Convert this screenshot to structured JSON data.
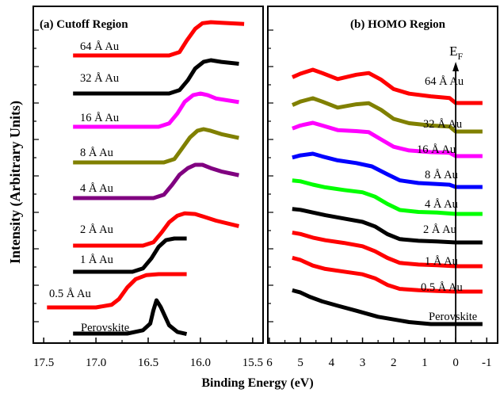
{
  "figure": {
    "ylabel": "Intensity (Arbitrary Units)",
    "xlabel": "Binding Energy (eV)",
    "ef_label": "E",
    "ef_subscript": "F"
  },
  "chart_data": [
    {
      "type": "line",
      "title": "(a) Cutoff Region",
      "xlabel": "Binding Energy (eV)",
      "ylabel": "Intensity (Arbitrary Units)",
      "xlim": [
        17.6,
        15.4
      ],
      "x_reversed": true,
      "x_ticks": [
        "17.5",
        "17.0",
        "16.5",
        "16.0",
        "15.5"
      ],
      "grid": false,
      "legend": "none (inline curve labels)",
      "series": [
        {
          "name": "Perovskite",
          "color": "#000000",
          "x": [
            17.2,
            16.7,
            16.55,
            16.48,
            16.45,
            16.42,
            16.38,
            16.3,
            16.22,
            16.15
          ],
          "y": [
            0.0,
            0.0,
            0.1,
            0.3,
            0.7,
            1.0,
            0.8,
            0.25,
            0.05,
            0.0
          ]
        },
        {
          "name": "0.5 Å Au",
          "color": "#ff0000",
          "x": [
            17.45,
            17.0,
            16.85,
            16.78,
            16.7,
            16.62,
            16.52,
            16.4,
            16.15
          ],
          "y": [
            0.0,
            0.0,
            0.08,
            0.25,
            0.6,
            0.85,
            0.97,
            1.0,
            1.0
          ]
        },
        {
          "name": "1 Å Au",
          "color": "#000000",
          "x": [
            17.2,
            16.65,
            16.55,
            16.47,
            16.4,
            16.33,
            16.25,
            16.15
          ],
          "y": [
            0.0,
            0.0,
            0.1,
            0.4,
            0.75,
            0.95,
            1.0,
            1.0
          ]
        },
        {
          "name": "2 Å Au",
          "color": "#ff0000",
          "x": [
            17.2,
            16.55,
            16.45,
            16.37,
            16.3,
            16.22,
            16.15,
            16.05,
            15.95,
            15.85,
            15.65
          ],
          "y": [
            0.0,
            0.0,
            0.1,
            0.4,
            0.7,
            0.9,
            0.97,
            0.95,
            0.85,
            0.75,
            0.6
          ]
        },
        {
          "name": "4 Å Au",
          "color": "#800080",
          "x": [
            17.2,
            16.45,
            16.35,
            16.27,
            16.2,
            16.12,
            16.05,
            15.98,
            15.9,
            15.8,
            15.65
          ],
          "y": [
            0.0,
            0.0,
            0.1,
            0.4,
            0.7,
            0.9,
            1.0,
            1.0,
            0.9,
            0.8,
            0.7
          ]
        },
        {
          "name": "8 Å Au",
          "color": "#808000",
          "x": [
            17.2,
            16.35,
            16.25,
            16.18,
            16.1,
            16.03,
            15.97,
            15.9,
            15.8,
            15.65
          ],
          "y": [
            0.0,
            0.0,
            0.1,
            0.4,
            0.75,
            0.95,
            1.0,
            0.95,
            0.85,
            0.75
          ]
        },
        {
          "name": "16 Å Au",
          "color": "#ff00ff",
          "x": [
            17.2,
            16.4,
            16.3,
            16.22,
            16.15,
            16.07,
            16.0,
            15.93,
            15.85,
            15.65
          ],
          "y": [
            0.0,
            0.0,
            0.1,
            0.4,
            0.75,
            0.95,
            1.0,
            0.95,
            0.85,
            0.75
          ]
        },
        {
          "name": "32 Å Au",
          "color": "#000000",
          "x": [
            17.2,
            16.3,
            16.2,
            16.12,
            16.05,
            15.97,
            15.9,
            15.8,
            15.65
          ],
          "y": [
            0.0,
            0.0,
            0.1,
            0.4,
            0.75,
            0.95,
            1.0,
            0.95,
            0.9
          ]
        },
        {
          "name": "64 Å Au",
          "color": "#ff0000",
          "x": [
            17.2,
            16.3,
            16.2,
            16.13,
            16.05,
            15.98,
            15.9,
            15.8,
            15.6
          ],
          "y": [
            0.0,
            0.0,
            0.1,
            0.45,
            0.8,
            0.97,
            1.0,
            0.98,
            0.95
          ]
        }
      ]
    },
    {
      "type": "line",
      "title": "(b) HOMO Region",
      "xlabel": "Binding Energy (eV)",
      "xlim": [
        6.05,
        -1.35
      ],
      "x_reversed": true,
      "x_ticks": [
        "6",
        "5",
        "4",
        "3",
        "2",
        "1",
        "0",
        "-1"
      ],
      "fermi_level_marker": 0,
      "grid": false,
      "legend": "none (inline curve labels)",
      "series": [
        {
          "name": "Perovskite",
          "color": "#000000",
          "x": [
            5.2,
            5.0,
            4.7,
            4.3,
            3.8,
            3.2,
            2.5,
            1.5,
            0.8,
            0.0,
            -0.8
          ],
          "y": [
            1.0,
            0.95,
            0.82,
            0.68,
            0.55,
            0.4,
            0.22,
            0.06,
            0.0,
            0.0,
            0.0
          ]
        },
        {
          "name": "0.5 Å Au",
          "color": "#ff0000",
          "x": [
            5.2,
            5.0,
            4.6,
            4.2,
            3.6,
            3.0,
            2.6,
            2.2,
            1.8,
            1.2,
            0.6,
            0.0,
            -0.8
          ],
          "y": [
            1.0,
            0.95,
            0.78,
            0.68,
            0.6,
            0.52,
            0.4,
            0.2,
            0.08,
            0.04,
            0.02,
            0.0,
            0.0
          ]
        },
        {
          "name": "1 Å Au",
          "color": "#ff0000",
          "x": [
            5.2,
            5.0,
            4.6,
            4.2,
            3.6,
            3.0,
            2.6,
            2.2,
            1.8,
            1.2,
            0.6,
            0.0,
            -0.8
          ],
          "y": [
            1.0,
            0.97,
            0.86,
            0.78,
            0.7,
            0.6,
            0.45,
            0.25,
            0.1,
            0.05,
            0.03,
            0.0,
            0.0
          ]
        },
        {
          "name": "2 Å Au",
          "color": "#000000",
          "x": [
            5.2,
            5.0,
            4.6,
            4.2,
            3.6,
            3.0,
            2.6,
            2.2,
            1.8,
            1.2,
            0.6,
            0.0,
            -0.8
          ],
          "y": [
            1.0,
            0.98,
            0.9,
            0.82,
            0.72,
            0.62,
            0.48,
            0.25,
            0.1,
            0.05,
            0.03,
            0.0,
            0.0
          ]
        },
        {
          "name": "4 Å Au",
          "color": "#00ff00",
          "x": [
            5.2,
            5.0,
            4.6,
            4.2,
            3.6,
            3.0,
            2.6,
            2.2,
            1.8,
            1.2,
            0.6,
            0.0,
            -0.8
          ],
          "y": [
            1.0,
            0.98,
            0.88,
            0.8,
            0.72,
            0.65,
            0.52,
            0.3,
            0.12,
            0.06,
            0.04,
            0.0,
            0.0
          ]
        },
        {
          "name": "8 Å Au",
          "color": "#0000ff",
          "x": [
            5.2,
            5.0,
            4.6,
            4.3,
            3.8,
            3.2,
            2.7,
            2.2,
            1.8,
            1.2,
            0.6,
            0.2,
            0.0,
            -0.8
          ],
          "y": [
            0.9,
            0.95,
            1.0,
            0.92,
            0.8,
            0.72,
            0.62,
            0.38,
            0.2,
            0.12,
            0.09,
            0.07,
            0.0,
            0.0
          ]
        },
        {
          "name": "16 Å Au",
          "color": "#ff00ff",
          "x": [
            5.2,
            5.0,
            4.6,
            4.3,
            3.8,
            3.2,
            2.8,
            2.4,
            2.0,
            1.5,
            0.8,
            0.2,
            0.0,
            -0.8
          ],
          "y": [
            0.85,
            0.92,
            1.0,
            0.92,
            0.78,
            0.75,
            0.72,
            0.5,
            0.28,
            0.17,
            0.12,
            0.1,
            0.0,
            0.0
          ]
        },
        {
          "name": "32 Å Au",
          "color": "#808000",
          "x": [
            5.2,
            5.0,
            4.6,
            4.3,
            3.8,
            3.2,
            2.8,
            2.4,
            2.0,
            1.5,
            0.8,
            0.2,
            0.0,
            -0.8
          ],
          "y": [
            0.82,
            0.9,
            1.0,
            0.9,
            0.72,
            0.82,
            0.85,
            0.65,
            0.38,
            0.25,
            0.18,
            0.15,
            0.0,
            0.0
          ]
        },
        {
          "name": "64 Å Au",
          "color": "#ff0000",
          "x": [
            5.2,
            5.0,
            4.6,
            4.3,
            3.8,
            3.2,
            2.8,
            2.4,
            2.0,
            1.5,
            0.8,
            0.2,
            0.0,
            -0.8
          ],
          "y": [
            0.8,
            0.88,
            1.0,
            0.9,
            0.72,
            0.85,
            0.9,
            0.7,
            0.42,
            0.28,
            0.2,
            0.15,
            0.0,
            0.0
          ]
        }
      ]
    }
  ]
}
